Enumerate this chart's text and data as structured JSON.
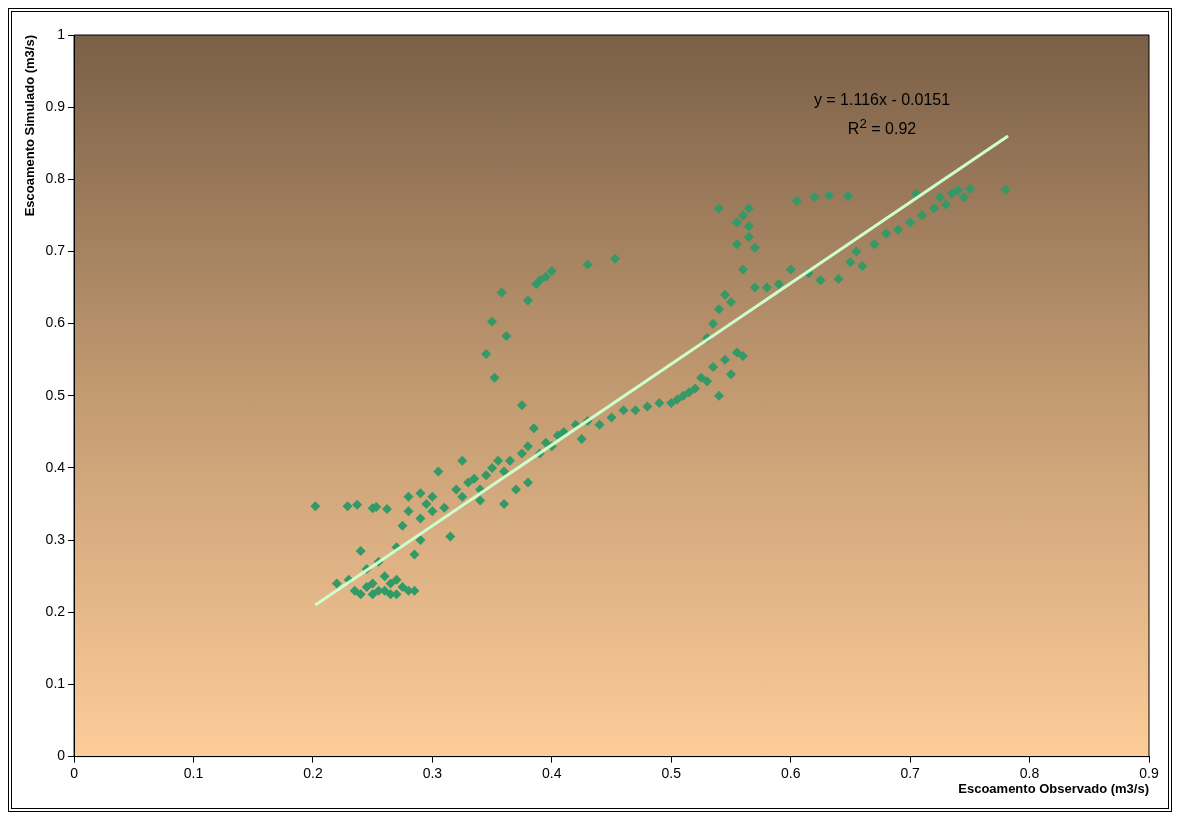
{
  "chart_data": {
    "type": "scatter",
    "xlabel": "Escoamento Observado (m3/s)",
    "ylabel": "Escoamento Simulado (m3/s)",
    "xlim": [
      0,
      0.9
    ],
    "xticks": [
      0,
      0.1,
      0.2,
      0.3,
      0.4,
      0.5,
      0.6,
      0.7,
      0.8,
      0.9
    ],
    "ylim": [
      0,
      1
    ],
    "yticks": [
      0,
      0.1,
      0.2,
      0.3,
      0.4,
      0.5,
      0.6,
      0.7,
      0.8,
      0.9,
      1
    ],
    "grid": false,
    "legend": false,
    "annotations": [
      "y = 1.116x - 0.0151",
      "R$^{2}$ = 0.92"
    ],
    "series": [
      {
        "marker": "diamond",
        "color": "#339966",
        "x": [
          0.202,
          0.229,
          0.237,
          0.25,
          0.253,
          0.262,
          0.22,
          0.23,
          0.235,
          0.24,
          0.24,
          0.245,
          0.25,
          0.25,
          0.255,
          0.26,
          0.26,
          0.265,
          0.27,
          0.27,
          0.275,
          0.28,
          0.285,
          0.245,
          0.255,
          0.265,
          0.27,
          0.275,
          0.28,
          0.28,
          0.285,
          0.29,
          0.29,
          0.29,
          0.295,
          0.3,
          0.3,
          0.305,
          0.31,
          0.315,
          0.32,
          0.325,
          0.325,
          0.33,
          0.335,
          0.34,
          0.34,
          0.345,
          0.35,
          0.355,
          0.36,
          0.36,
          0.365,
          0.37,
          0.375,
          0.38,
          0.38,
          0.385,
          0.39,
          0.395,
          0.4,
          0.405,
          0.41,
          0.42,
          0.425,
          0.43,
          0.44,
          0.45,
          0.46,
          0.47,
          0.48,
          0.49,
          0.345,
          0.35,
          0.352,
          0.358,
          0.362,
          0.375,
          0.38,
          0.387,
          0.39,
          0.395,
          0.4,
          0.43,
          0.453,
          0.5,
          0.505,
          0.51,
          0.515,
          0.52,
          0.525,
          0.53,
          0.535,
          0.54,
          0.53,
          0.535,
          0.54,
          0.545,
          0.55,
          0.545,
          0.55,
          0.555,
          0.56,
          0.54,
          0.555,
          0.56,
          0.565,
          0.555,
          0.565,
          0.565,
          0.57,
          0.56,
          0.57,
          0.58,
          0.59,
          0.6,
          0.605,
          0.62,
          0.632,
          0.648,
          0.615,
          0.625,
          0.64,
          0.65,
          0.655,
          0.66,
          0.67,
          0.68,
          0.69,
          0.7,
          0.705,
          0.71,
          0.72,
          0.725,
          0.73,
          0.735,
          0.74,
          0.745,
          0.75,
          0.78
        ],
        "values": [
          0.347,
          0.347,
          0.349,
          0.344,
          0.346,
          0.343,
          0.24,
          0.245,
          0.23,
          0.225,
          0.285,
          0.26,
          0.24,
          0.225,
          0.27,
          0.25,
          0.23,
          0.24,
          0.225,
          0.245,
          0.235,
          0.23,
          0.23,
          0.235,
          0.23,
          0.225,
          0.29,
          0.32,
          0.34,
          0.36,
          0.28,
          0.3,
          0.33,
          0.365,
          0.35,
          0.36,
          0.34,
          0.395,
          0.345,
          0.305,
          0.37,
          0.36,
          0.41,
          0.38,
          0.385,
          0.37,
          0.355,
          0.39,
          0.4,
          0.41,
          0.35,
          0.395,
          0.41,
          0.37,
          0.42,
          0.43,
          0.38,
          0.455,
          0.42,
          0.435,
          0.43,
          0.445,
          0.45,
          0.46,
          0.44,
          0.465,
          0.46,
          0.47,
          0.48,
          0.48,
          0.485,
          0.49,
          0.558,
          0.603,
          0.525,
          0.643,
          0.583,
          0.487,
          0.632,
          0.655,
          0.66,
          0.665,
          0.673,
          0.682,
          0.69,
          0.49,
          0.495,
          0.5,
          0.505,
          0.51,
          0.525,
          0.52,
          0.54,
          0.5,
          0.58,
          0.6,
          0.62,
          0.64,
          0.63,
          0.55,
          0.53,
          0.56,
          0.555,
          0.76,
          0.74,
          0.75,
          0.76,
          0.71,
          0.72,
          0.735,
          0.705,
          0.675,
          0.65,
          0.65,
          0.655,
          0.675,
          0.77,
          0.775,
          0.778,
          0.777,
          0.67,
          0.66,
          0.662,
          0.685,
          0.7,
          0.68,
          0.71,
          0.725,
          0.73,
          0.74,
          0.78,
          0.75,
          0.76,
          0.775,
          0.765,
          0.78,
          0.785,
          0.775,
          0.787,
          0.786
        ]
      },
      {
        "type": "line",
        "marker": "none",
        "color": "#ccffcc",
        "x": [
          0.202,
          0.782
        ],
        "values": [
          0.21,
          0.86
        ]
      }
    ]
  }
}
